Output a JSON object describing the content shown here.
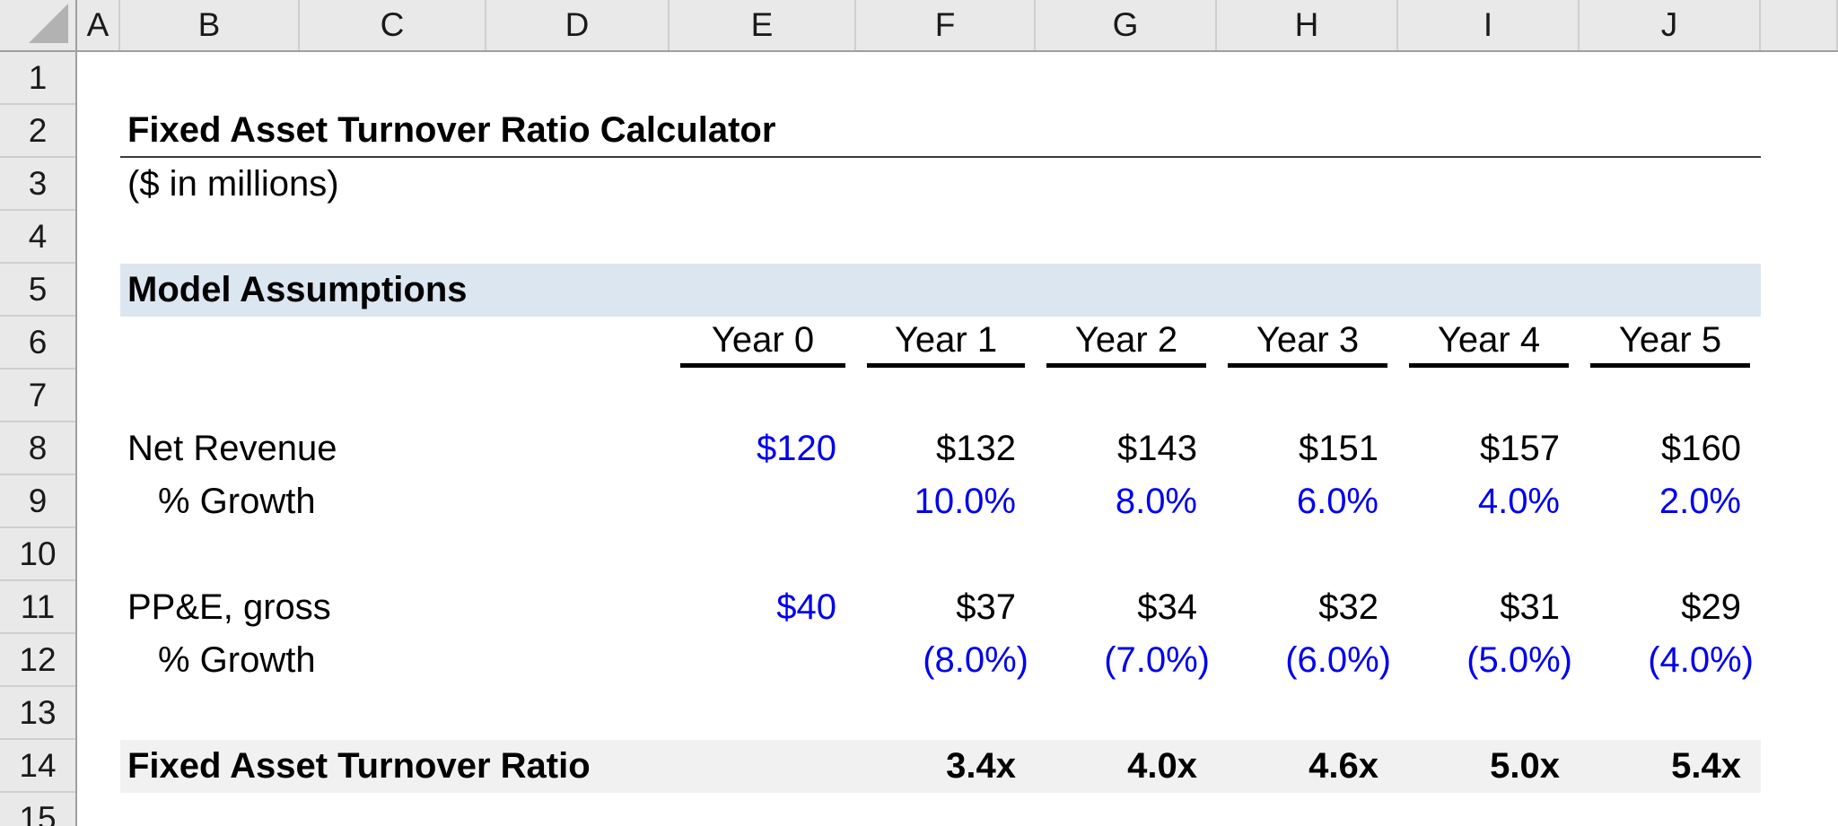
{
  "title": "Fixed Asset Turnover Ratio Calculator",
  "subtitle": "($ in millions)",
  "section_header": "Model Assumptions",
  "column_headers": [
    "A",
    "B",
    "C",
    "D",
    "E",
    "F",
    "G",
    "H",
    "I",
    "J"
  ],
  "row_headers": [
    "1",
    "2",
    "3",
    "4",
    "5",
    "6",
    "7",
    "8",
    "9",
    "10",
    "11",
    "12",
    "13",
    "14",
    "15"
  ],
  "year_headers": [
    "Year 0",
    "Year 1",
    "Year 2",
    "Year 3",
    "Year 4",
    "Year 5"
  ],
  "table": {
    "net_revenue": {
      "label": "Net Revenue",
      "values": [
        "$120",
        "$132",
        "$143",
        "$151",
        "$157",
        "$160"
      ]
    },
    "revenue_growth": {
      "label": "% Growth",
      "values": [
        "",
        "10.0%",
        "8.0%",
        "6.0%",
        "4.0%",
        "2.0%"
      ]
    },
    "ppe_gross": {
      "label": "PP&E, gross",
      "values": [
        "$40",
        "$37",
        "$34",
        "$32",
        "$31",
        "$29"
      ]
    },
    "ppe_growth": {
      "label": "% Growth",
      "values": [
        "",
        "(8.0%)",
        "(7.0%)",
        "(6.0%)",
        "(5.0%)",
        "(4.0%)"
      ]
    },
    "fat_ratio": {
      "label": "Fixed Asset Turnover Ratio",
      "values": [
        "",
        "3.4x",
        "4.0x",
        "4.6x",
        "5.0x",
        "5.4x"
      ]
    }
  },
  "colors": {
    "input_blue": "#0000EE",
    "section_fill": "#DCE6F1",
    "ratio_fill": "#F1F1F1",
    "header_fill": "#E9E9E9"
  }
}
